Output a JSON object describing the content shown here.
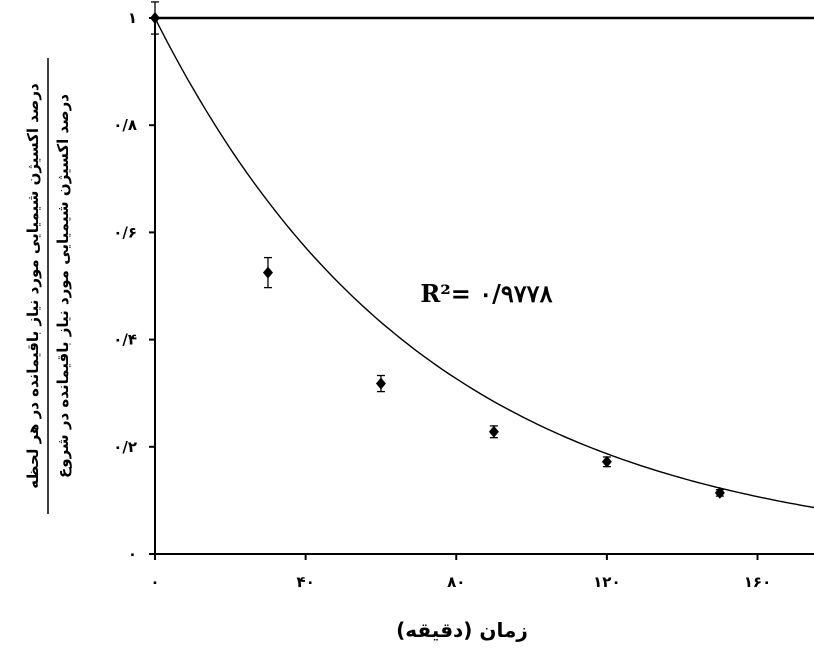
{
  "chart_data": {
    "type": "scatter",
    "xlabel": "زمان (دقیقه)",
    "ylabel_numerator": "درصد اکسیژن شیمیایی مورد نیاز باقیمانده در هر لحظه",
    "ylabel_denominator": "درصد اکسیژن شیمیایی مورد نیاز باقیمانده در شروع",
    "xlim": [
      0,
      175
    ],
    "ylim": [
      0,
      1
    ],
    "x_ticks": [
      {
        "value": 0,
        "label": "۰"
      },
      {
        "value": 40,
        "label": "۴۰"
      },
      {
        "value": 80,
        "label": "۸۰"
      },
      {
        "value": 120,
        "label": "۱۲۰"
      },
      {
        "value": 160,
        "label": "۱۶۰"
      }
    ],
    "y_ticks": [
      {
        "value": 0,
        "label": "۰"
      },
      {
        "value": 0.2,
        "label": "۰/۲"
      },
      {
        "value": 0.4,
        "label": "۰/۴"
      },
      {
        "value": 0.6,
        "label": "۰/۶"
      },
      {
        "value": 0.8,
        "label": "۰/۸"
      },
      {
        "value": 1,
        "label": "۱"
      }
    ],
    "points": [
      {
        "x": 0,
        "y": 1.0,
        "err": 0.03
      },
      {
        "x": 30,
        "y": 0.525,
        "err": 0.028
      },
      {
        "x": 60,
        "y": 0.318,
        "err": 0.015
      },
      {
        "x": 90,
        "y": 0.228,
        "err": 0.011
      },
      {
        "x": 120,
        "y": 0.172,
        "err": 0.009
      },
      {
        "x": 150,
        "y": 0.114,
        "err": 0.006
      }
    ],
    "fit": {
      "type": "exponential",
      "a": 1.0,
      "k": 0.01397,
      "x_start": 0,
      "x_end": 175
    },
    "annotation": {
      "text": "R²= ۰/۹۷۷۸",
      "x": 88,
      "y": 0.47
    },
    "grid": false,
    "legend": "none"
  }
}
